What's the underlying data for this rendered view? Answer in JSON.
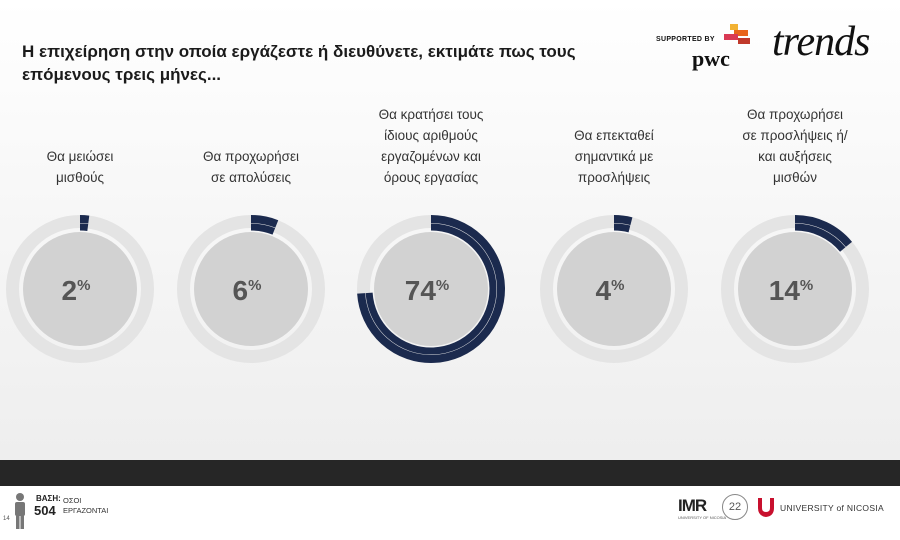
{
  "title": "Η επιχείρηση στην οποία εργάζεστε ή διευθύνετε, εκτιμάτε πως τους επόμενους τρεις μήνες...",
  "header": {
    "supported_by": "SUPPORTED BY",
    "pwc": "pwc",
    "trends": "trends"
  },
  "colors": {
    "accent": "#1b2a4e",
    "track": "#dddddd",
    "inner": "#d2d2d2",
    "pwc_orange": "#e8641b",
    "unic_red": "#c8102e"
  },
  "chart_data": {
    "type": "pie",
    "unit": "%",
    "categories": [
      "Θα μειώσει μισθούς",
      "Θα προχωρήσει σε απολύσεις",
      "Θα κρατήσει τους ίδιους αριθμούς εργαζομένων και όρους εργασίας",
      "Θα επεκταθεί σημαντικά με προσλήψεις",
      "Θα προχωρήσει σε προσλήψεις ή/ και αυξήσεις μισθών"
    ],
    "category_lines": [
      [
        "Θα μειώσει",
        "μισθούς"
      ],
      [
        "Θα προχωρήσει",
        "σε απολύσεις"
      ],
      [
        "Θα κρατήσει τους",
        "ίδιους αριθμούς",
        "εργαζομένων και",
        "όρους εργασίας"
      ],
      [
        "Θα επεκταθεί",
        "σημαντικά με",
        "προσλήψεις"
      ],
      [
        "Θα προχωρήσει",
        "σε προσλήψεις ή/",
        "και αυξήσεις",
        "μισθών"
      ]
    ],
    "values": [
      2,
      6,
      74,
      4,
      14
    ],
    "value_labels": [
      "2",
      "6",
      "74",
      "4",
      "14"
    ]
  },
  "footer": {
    "base_label": "ΒΑΣΗ:",
    "base_value": "504",
    "base_desc": "ΟΣΟΙ ΕΡΓΑΖΟΝΤΑΙ",
    "page_number": "14",
    "imr": "IMR",
    "imr_sub": "UNIVERSITY OF NICOSIA",
    "anniversary": "22",
    "university": "UNIVERSITY of NICOSIA"
  }
}
